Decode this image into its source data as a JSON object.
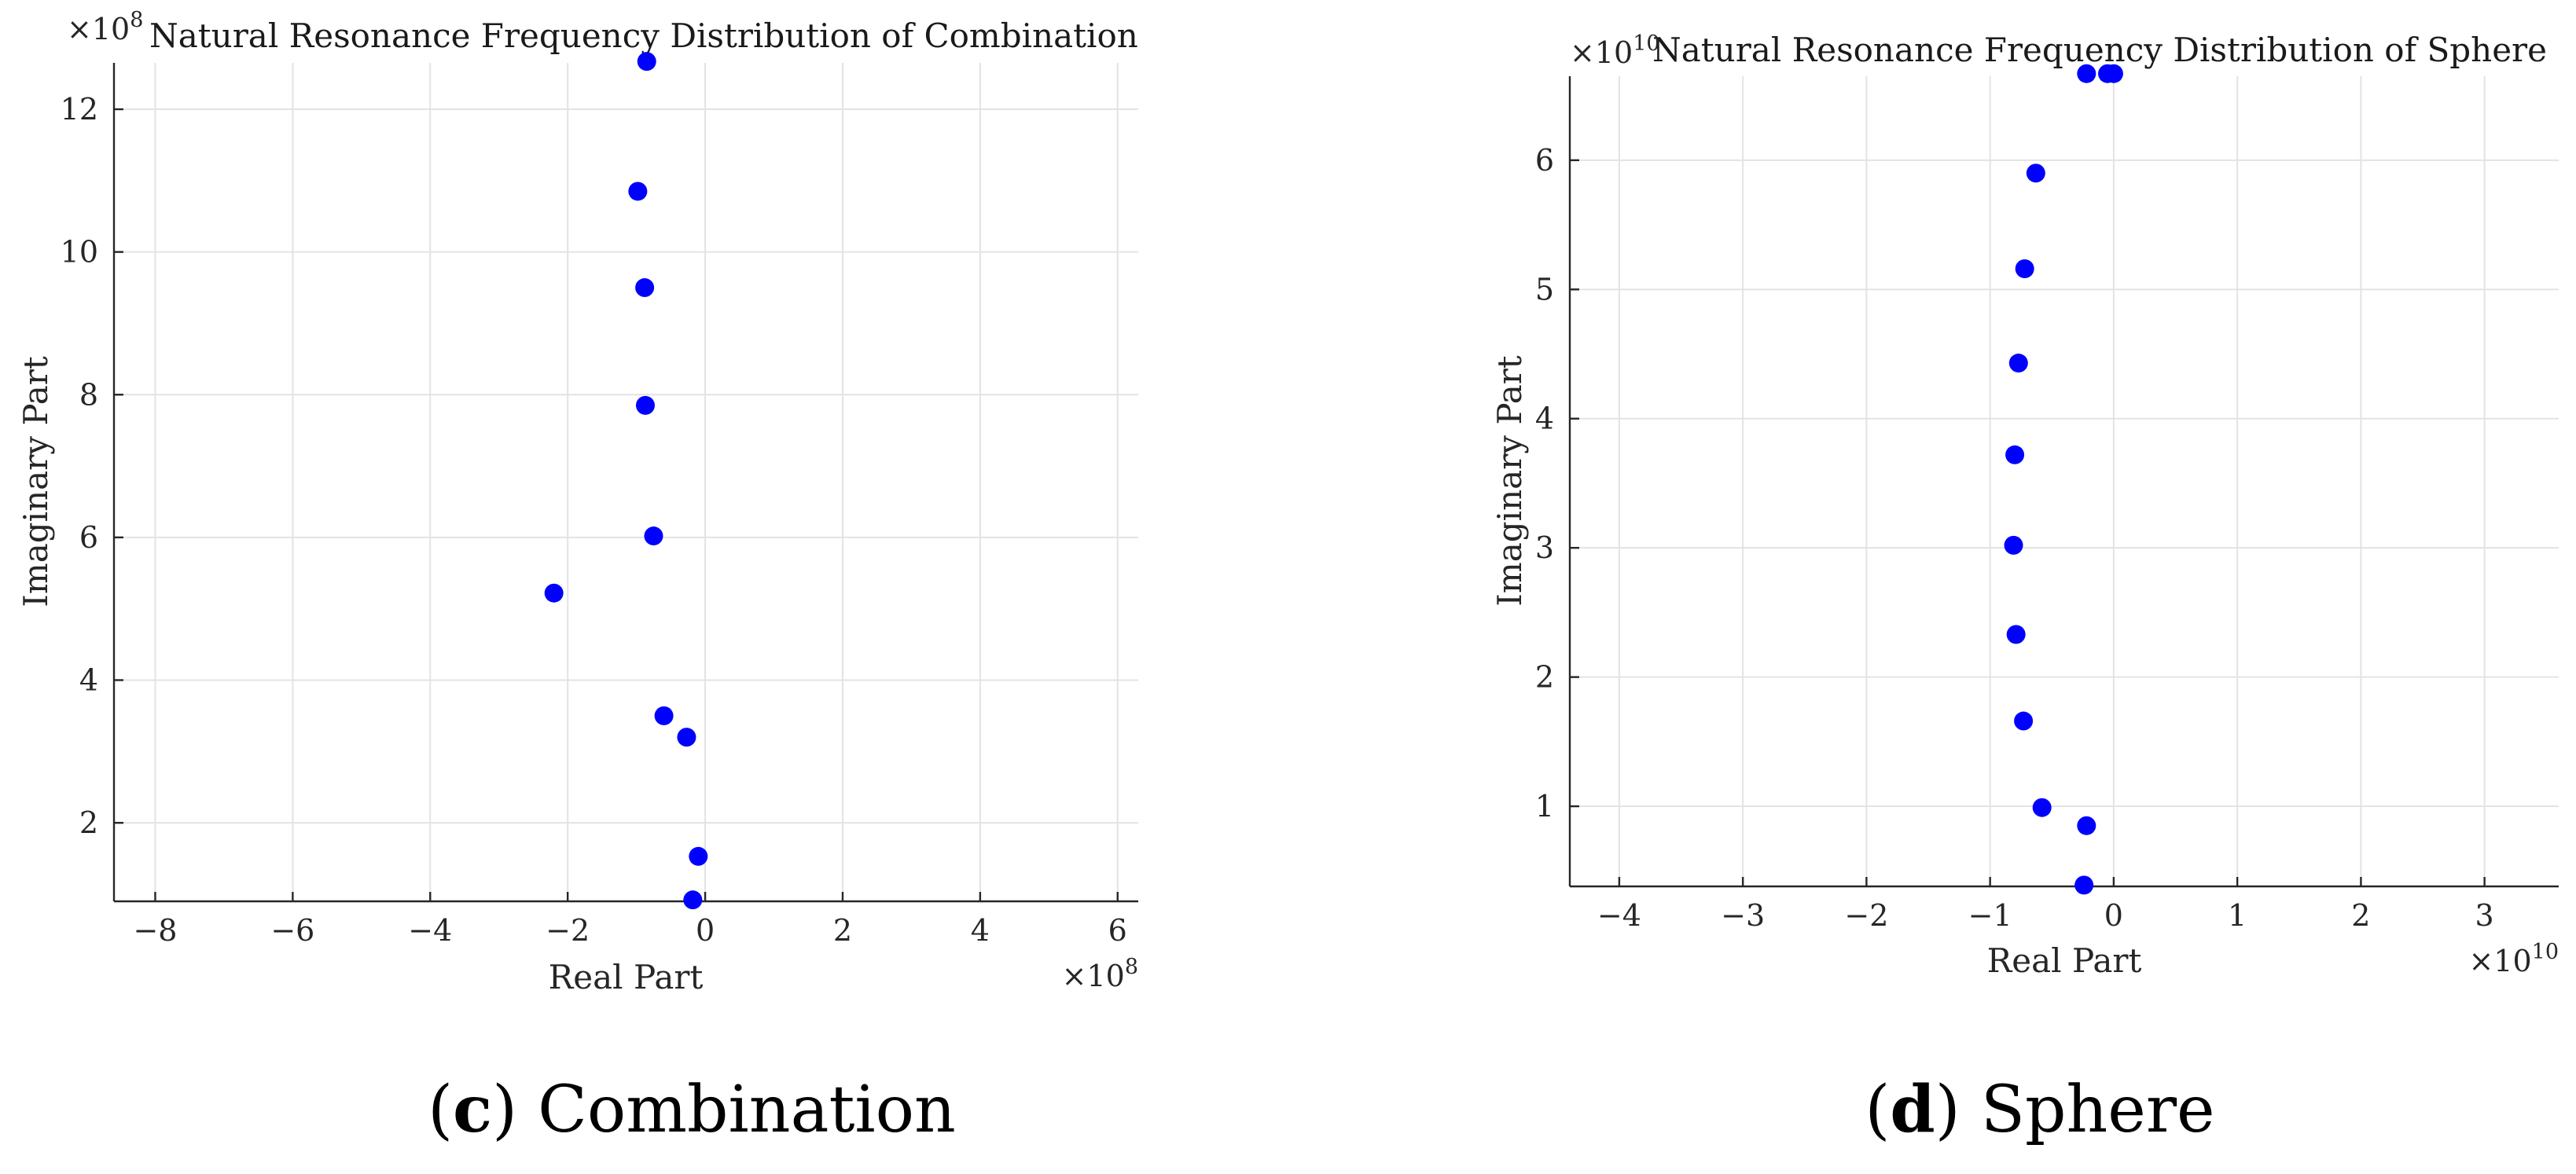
{
  "chart_data": [
    {
      "type": "scatter",
      "title": "Natural Resonance Frequency Distribution of Combination",
      "xlabel": "Real Part",
      "ylabel": "Imaginary Part",
      "x_exponent": "8",
      "y_exponent": "8",
      "xlim": [
        -8.6,
        6.3
      ],
      "ylim": [
        0.9,
        12.65
      ],
      "xticks": [
        -8,
        -6,
        -4,
        -2,
        0,
        2,
        4,
        6
      ],
      "yticks": [
        2,
        4,
        6,
        8,
        10,
        12
      ],
      "xtick_labels": [
        "−8",
        "−6",
        "−4",
        "−2",
        "0",
        "2",
        "4",
        "6"
      ],
      "ytick_labels": [
        "2",
        "4",
        "6",
        "8",
        "10",
        "12"
      ],
      "grid": true,
      "color": "#0000ff",
      "points": [
        {
          "x": -0.85,
          "y": 12.67
        },
        {
          "x": -0.98,
          "y": 10.85
        },
        {
          "x": -0.88,
          "y": 9.5
        },
        {
          "x": -0.87,
          "y": 7.85
        },
        {
          "x": -0.75,
          "y": 6.02
        },
        {
          "x": -2.2,
          "y": 5.22
        },
        {
          "x": -0.6,
          "y": 3.5
        },
        {
          "x": -0.27,
          "y": 3.2
        },
        {
          "x": -0.1,
          "y": 1.53
        },
        {
          "x": -0.18,
          "y": 0.92
        }
      ],
      "caption_letter": "c",
      "caption_text": "Combination"
    },
    {
      "type": "scatter",
      "title": "Natural Resonance Frequency Distribution of Sphere",
      "xlabel": "Real Part",
      "ylabel": "Imaginary Part",
      "x_exponent": "10",
      "y_exponent": "10",
      "xlim": [
        -4.4,
        3.6
      ],
      "ylim": [
        0.38,
        6.65
      ],
      "xticks": [
        -4,
        -3,
        -2,
        -1,
        0,
        1,
        2,
        3
      ],
      "yticks": [
        1,
        2,
        3,
        4,
        5,
        6
      ],
      "xtick_labels": [
        "−4",
        "−3",
        "−2",
        "−1",
        "0",
        "1",
        "2",
        "3"
      ],
      "ytick_labels": [
        "1",
        "2",
        "3",
        "4",
        "5",
        "6"
      ],
      "grid": true,
      "color": "#0000ff",
      "points": [
        {
          "x": -0.22,
          "y": 6.67
        },
        {
          "x": -0.05,
          "y": 6.67
        },
        {
          "x": 0.0,
          "y": 6.67
        },
        {
          "x": -0.63,
          "y": 5.9
        },
        {
          "x": -0.72,
          "y": 5.16
        },
        {
          "x": -0.77,
          "y": 4.43
        },
        {
          "x": -0.8,
          "y": 3.72
        },
        {
          "x": -0.81,
          "y": 3.02
        },
        {
          "x": -0.79,
          "y": 2.33
        },
        {
          "x": -0.73,
          "y": 1.66
        },
        {
          "x": -0.58,
          "y": 0.99
        },
        {
          "x": -0.22,
          "y": 0.85
        },
        {
          "x": -0.24,
          "y": 0.39
        }
      ],
      "caption_letter": "d",
      "caption_text": "Sphere"
    }
  ]
}
